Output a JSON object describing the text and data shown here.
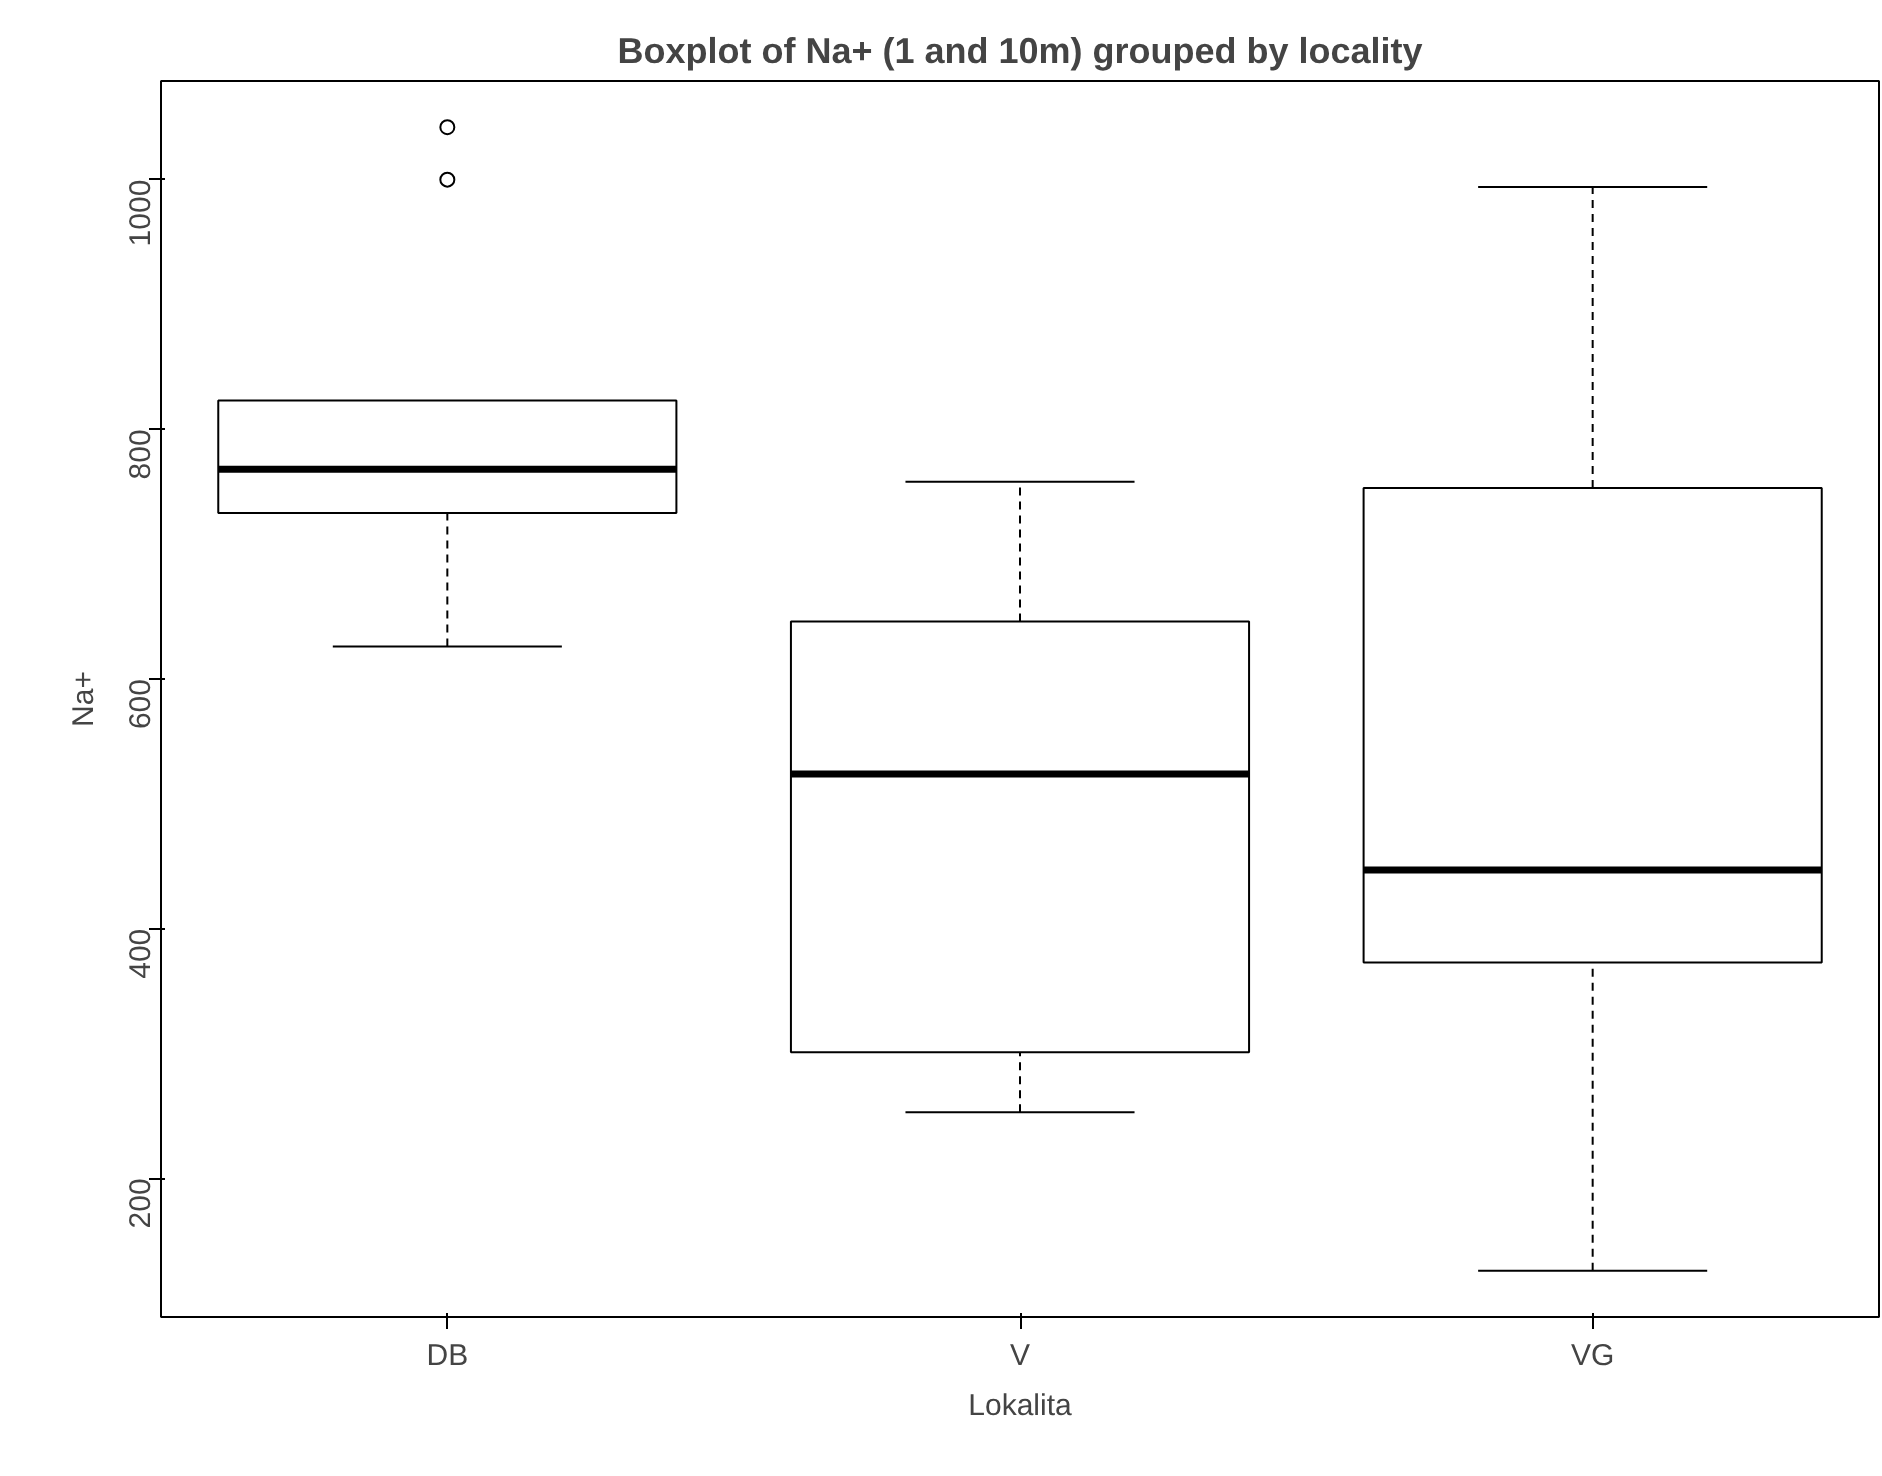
{
  "chart_data": {
    "type": "box",
    "title": "Boxplot of Na+ (1 and 10m) grouped by locality",
    "xlabel": "Lokalita",
    "ylabel": "Na+",
    "categories": [
      "DB",
      "V",
      "VG"
    ],
    "boxes": [
      {
        "low": 626,
        "q1": 733,
        "median": 768,
        "q3": 823,
        "high": 823,
        "outliers": [
          1000,
          1042
        ]
      },
      {
        "low": 253,
        "q1": 301,
        "median": 524,
        "q3": 646,
        "high": 758
      },
      {
        "low": 126,
        "q1": 373,
        "median": 447,
        "q3": 753,
        "high": 994
      }
    ],
    "color": "#ffffff",
    "ylim": [
      89,
      1079
    ],
    "yticks": [
      200,
      400,
      600,
      800,
      1000
    ],
    "grid": false
  }
}
